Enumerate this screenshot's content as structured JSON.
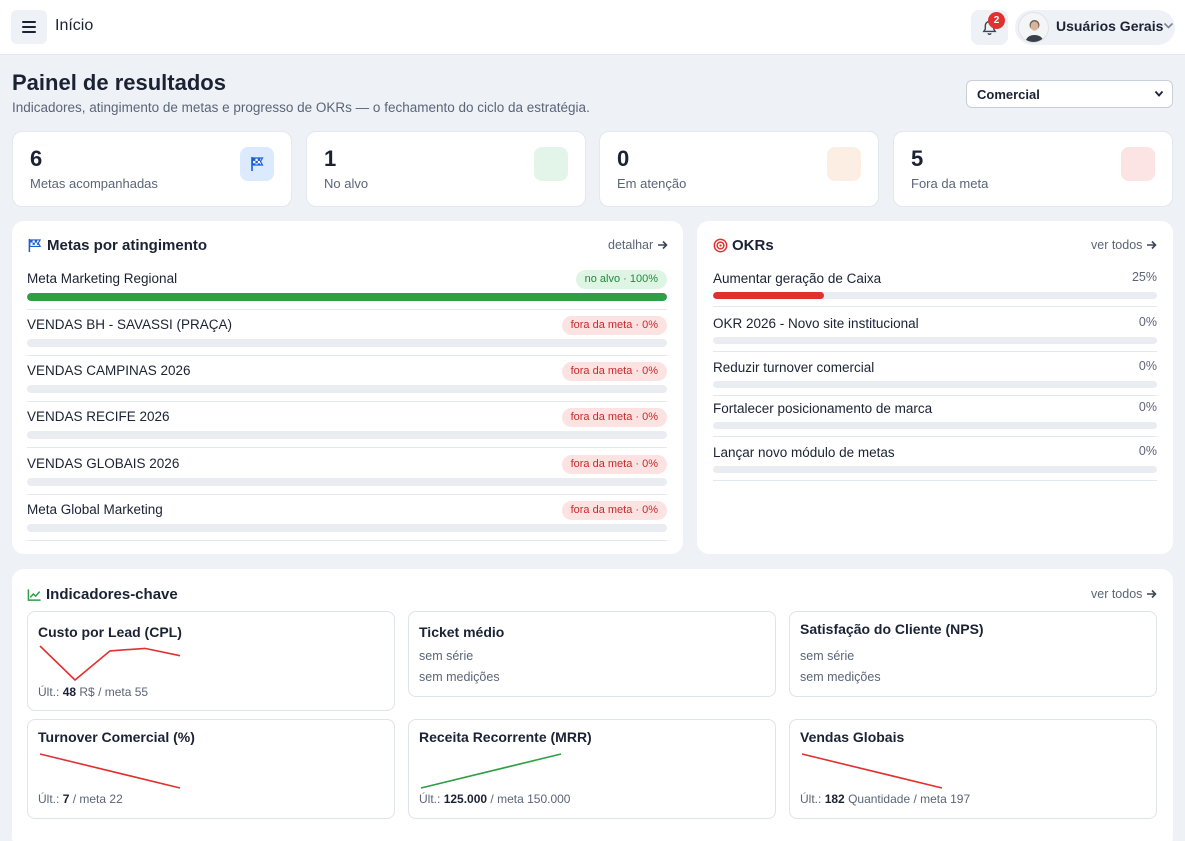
{
  "topbar": {
    "title": "Início",
    "notifications_count": "2",
    "user_name": "Usuários Gerais"
  },
  "header": {
    "title": "Painel de resultados",
    "subtitle": "Indicadores, atingimento de metas e progresso de OKRs — o fechamento do ciclo da estratégia.",
    "filter_selected": "Comercial"
  },
  "kpis": [
    {
      "value": "6",
      "label": "Metas acompanhadas",
      "icon": "flag-icon",
      "color": "#dbeafe"
    },
    {
      "value": "1",
      "label": "No alvo",
      "icon": "check-icon",
      "color": "#e3f5e8"
    },
    {
      "value": "0",
      "label": "Em atenção",
      "icon": "alert-icon",
      "color": "#fdeee4"
    },
    {
      "value": "5",
      "label": "Fora da meta",
      "icon": "x-icon",
      "color": "#fde4e4"
    }
  ],
  "goals_panel": {
    "title": "Metas por atingimento",
    "link": "detalhar",
    "items": [
      {
        "name": "Meta Marketing Regional",
        "badge": "no alvo · 100%",
        "status": "ok",
        "progress": 100
      },
      {
        "name": "VENDAS BH - SAVASSI (PRAÇA)",
        "badge": "fora da meta · 0%",
        "status": "bad",
        "progress": 0
      },
      {
        "name": "VENDAS CAMPINAS 2026",
        "badge": "fora da meta · 0%",
        "status": "bad",
        "progress": 0
      },
      {
        "name": "VENDAS RECIFE 2026",
        "badge": "fora da meta · 0%",
        "status": "bad",
        "progress": 0
      },
      {
        "name": "VENDAS GLOBAIS 2026",
        "badge": "fora da meta · 0%",
        "status": "bad",
        "progress": 0
      },
      {
        "name": "Meta Global Marketing",
        "badge": "fora da meta · 0%",
        "status": "bad",
        "progress": 0
      }
    ]
  },
  "okr_panel": {
    "title": "OKRs",
    "link": "ver todos",
    "items": [
      {
        "name": "Aumentar geração de Caixa",
        "pct": "25%",
        "progress": 25
      },
      {
        "name": "OKR 2026 - Novo site institucional",
        "pct": "0%",
        "progress": 0
      },
      {
        "name": "Reduzir turnover comercial",
        "pct": "0%",
        "progress": 0
      },
      {
        "name": "Fortalecer posicionamento de marca",
        "pct": "0%",
        "progress": 0
      },
      {
        "name": "Lançar novo módulo de metas",
        "pct": "0%",
        "progress": 0
      }
    ]
  },
  "indicators_panel": {
    "title": "Indicadores-chave",
    "link": "ver todos",
    "cards": [
      {
        "title": "Custo por Lead (CPL)",
        "foot_prefix": "Últ.:",
        "last": "48",
        "foot_suffix": "R$ / meta 55",
        "spark": [
          20,
          6,
          18,
          19,
          16
        ],
        "color": "#e03131"
      },
      {
        "title": "Ticket médio",
        "empty1": "sem série",
        "empty2": "sem medições"
      },
      {
        "title": "Satisfação do Cliente (NPS)",
        "empty1": "sem série",
        "empty2": "sem medições"
      },
      {
        "title": "Turnover Comercial (%)",
        "foot_prefix": "Últ.:",
        "last": "7",
        "foot_suffix": "/ meta 22",
        "spark": [
          22,
          7
        ],
        "color": "#e03131"
      },
      {
        "title": "Receita Recorrente (MRR)",
        "foot_prefix": "Últ.:",
        "last": "125.000",
        "foot_suffix": "/ meta 150.000",
        "spark": [
          0,
          100
        ],
        "color": "#2f9e44"
      },
      {
        "title": "Vendas Globais",
        "foot_prefix": "Últ.:",
        "last": "182",
        "foot_suffix": "Quantidade / meta 197",
        "spark": [
          197,
          182
        ],
        "color": "#e03131"
      }
    ]
  }
}
